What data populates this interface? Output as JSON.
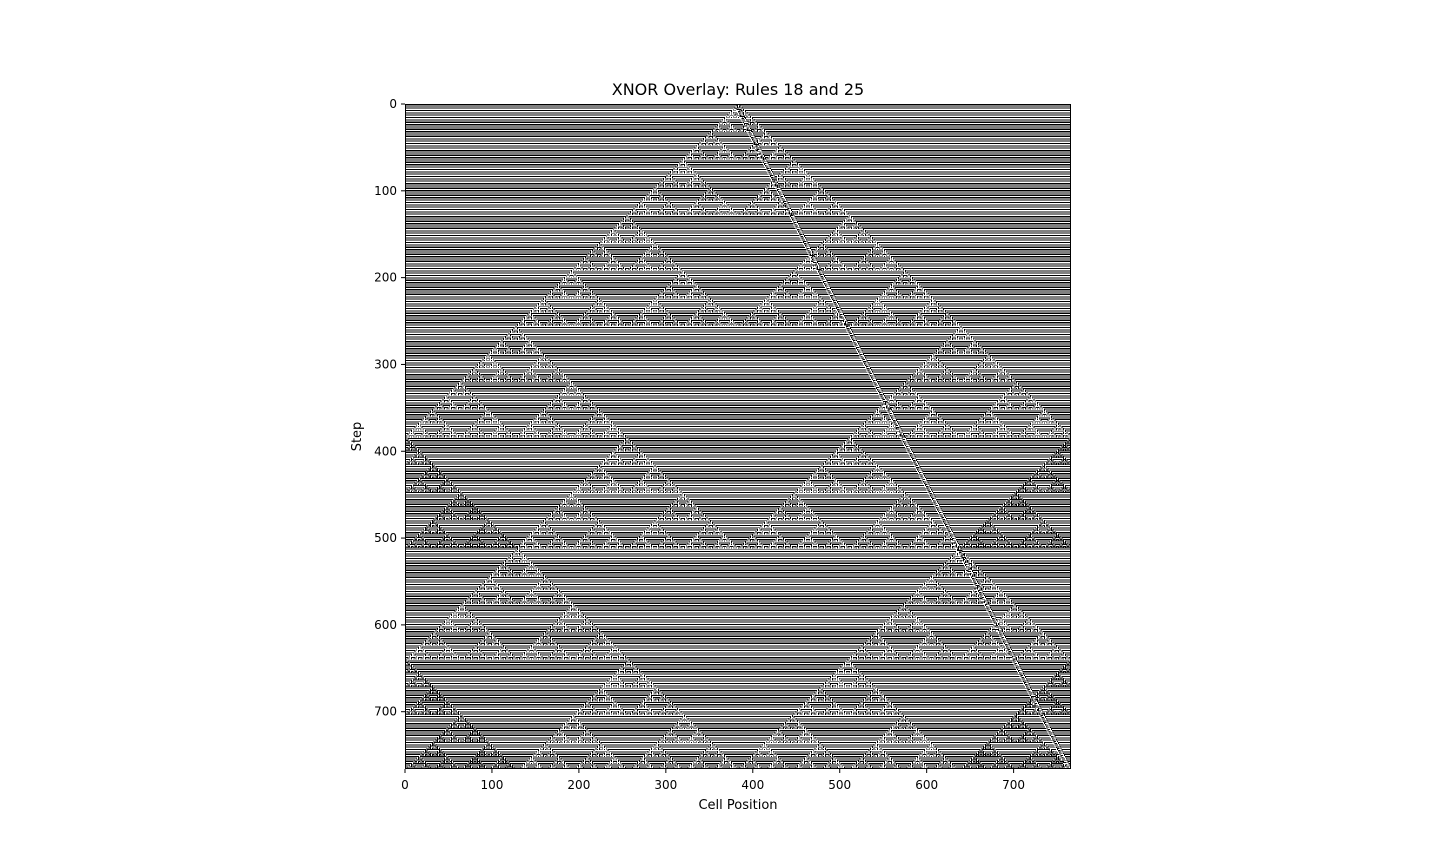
{
  "chart_data": {
    "type": "heatmap",
    "title": "XNOR Overlay: Rules 18 and 25",
    "xlabel": "Cell Position",
    "ylabel": "Step",
    "xlim": [
      0,
      766
    ],
    "ylim": [
      766,
      0
    ],
    "xticks": [
      0,
      100,
      200,
      300,
      400,
      500,
      600,
      700
    ],
    "yticks": [
      0,
      100,
      200,
      300,
      400,
      500,
      600,
      700
    ],
    "rules": [
      18,
      25
    ],
    "combine": "XNOR",
    "colormap": "gray",
    "grid": false,
    "width_cells": 766,
    "steps": 766,
    "initial_condition": "single center cell"
  }
}
